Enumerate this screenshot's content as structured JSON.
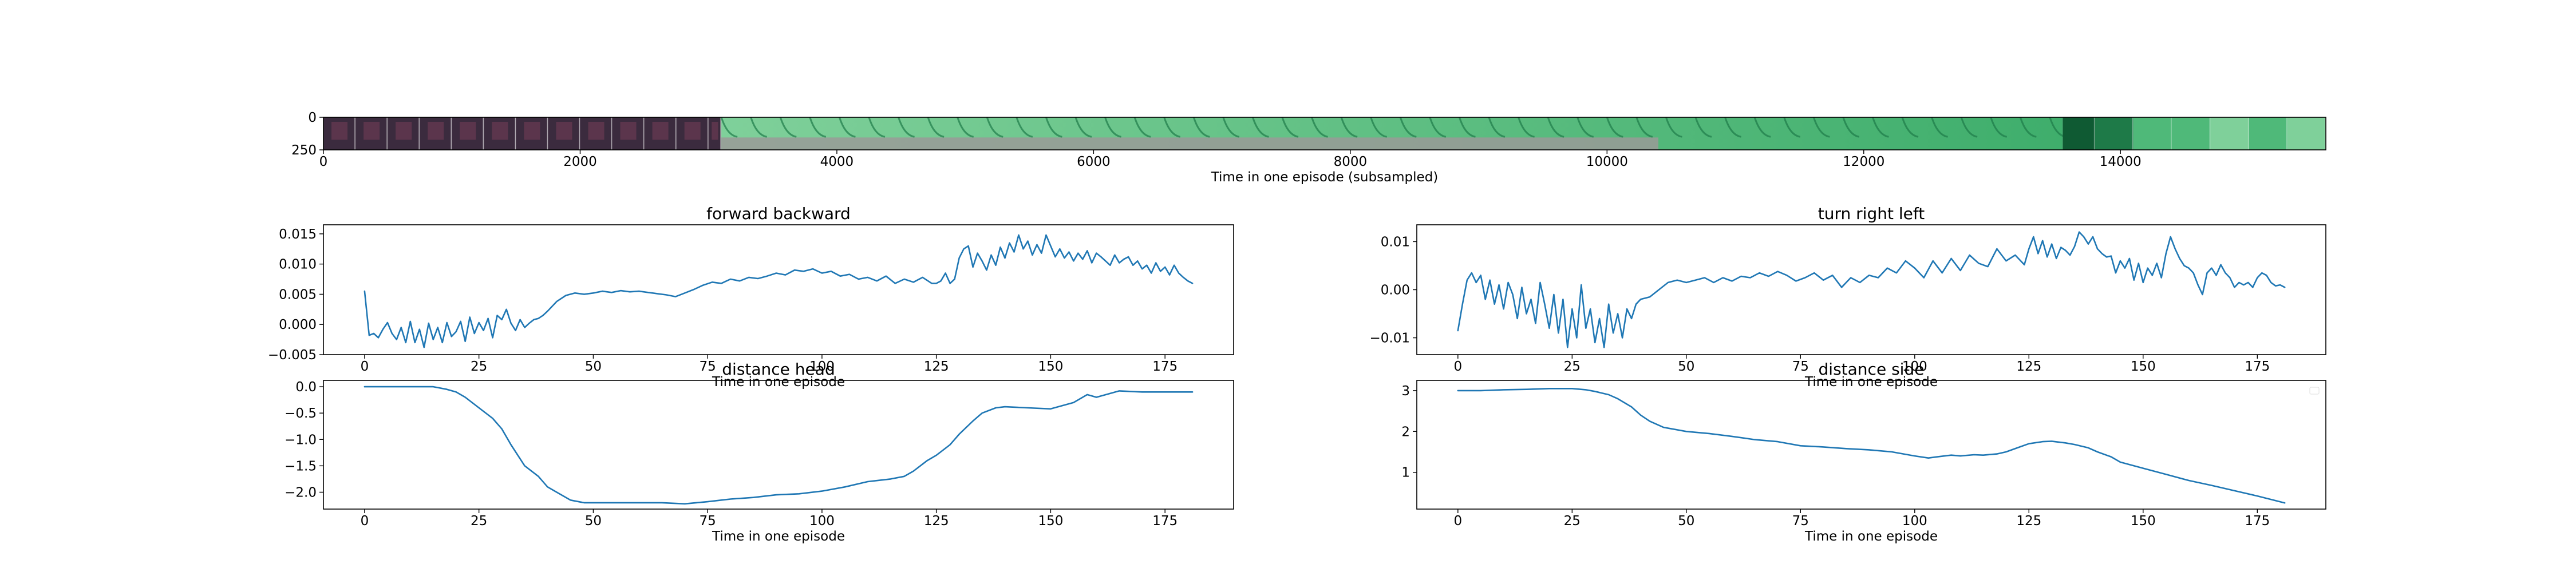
{
  "strip": {
    "xlabel": "Time in one episode (subsampled)",
    "xlim": [
      0,
      15600
    ],
    "xticks": [
      0,
      2000,
      4000,
      6000,
      8000,
      10000,
      12000,
      14000
    ],
    "ylim": [
      250,
      0
    ],
    "yticks": [
      0,
      250
    ],
    "colors": {
      "dark_frame": "#3b2b3e",
      "dark_frame_accent": "#6a3a52",
      "floor": "#9a9a98",
      "green_light": "#7fd09a",
      "green_mid": "#4fb979",
      "green_dark": "#1e7a48",
      "green_deep": "#0f5a33"
    }
  },
  "chart_data": [
    {
      "type": "line",
      "title": "forward backward",
      "xlabel": "Time in one episode",
      "ylabel": "",
      "xlim": [
        -9,
        190
      ],
      "ylim": [
        -0.005,
        0.0165
      ],
      "xticks": [
        0,
        25,
        50,
        75,
        100,
        125,
        150,
        175
      ],
      "yticks": [
        -0.005,
        0.0,
        0.005,
        0.01,
        0.015
      ],
      "ytick_labels": [
        "−0.005",
        "0.000",
        "0.005",
        "0.010",
        "0.015"
      ],
      "grid": false,
      "series": [
        {
          "color": "#1f77b4",
          "x": [
            0,
            1,
            2,
            3,
            4,
            5,
            6,
            7,
            8,
            9,
            10,
            11,
            12,
            13,
            14,
            15,
            16,
            17,
            18,
            19,
            20,
            21,
            22,
            23,
            24,
            25,
            26,
            27,
            28,
            29,
            30,
            31,
            32,
            33,
            34,
            35,
            36,
            37,
            38,
            39,
            40,
            42,
            44,
            46,
            48,
            50,
            52,
            54,
            56,
            58,
            60,
            62,
            64,
            66,
            68,
            70,
            72,
            74,
            76,
            78,
            80,
            82,
            84,
            86,
            88,
            90,
            92,
            94,
            96,
            98,
            100,
            102,
            104,
            106,
            108,
            110,
            112,
            114,
            116,
            118,
            120,
            122,
            124,
            125,
            126,
            127,
            128,
            129,
            130,
            131,
            132,
            133,
            134,
            135,
            136,
            137,
            138,
            139,
            140,
            141,
            142,
            143,
            144,
            145,
            146,
            147,
            148,
            149,
            150,
            151,
            152,
            153,
            154,
            155,
            156,
            157,
            158,
            159,
            160,
            161,
            162,
            163,
            164,
            165,
            166,
            167,
            168,
            169,
            170,
            171,
            172,
            173,
            174,
            175,
            176,
            177,
            178,
            179,
            180,
            181
          ],
          "y": [
            0.0055,
            -0.0018,
            -0.0015,
            -0.0022,
            -0.0008,
            0.0003,
            -0.0015,
            -0.0025,
            -0.0005,
            -0.003,
            0.0005,
            -0.003,
            -0.0008,
            -0.0038,
            0.0002,
            -0.0025,
            -0.0005,
            -0.003,
            0.0003,
            -0.002,
            -0.0012,
            0.0005,
            -0.0028,
            0.0012,
            -0.0015,
            0.0003,
            -0.001,
            0.001,
            -0.0022,
            0.0015,
            0.0008,
            0.0025,
            0.0002,
            -0.001,
            0.0008,
            -0.0005,
            0.0002,
            0.0008,
            0.001,
            0.0015,
            0.0022,
            0.0038,
            0.0048,
            0.0052,
            0.005,
            0.0052,
            0.0055,
            0.0053,
            0.0056,
            0.0054,
            0.0055,
            0.0053,
            0.0051,
            0.0049,
            0.0046,
            0.0052,
            0.0058,
            0.0065,
            0.007,
            0.0068,
            0.0075,
            0.0072,
            0.0078,
            0.0076,
            0.008,
            0.0085,
            0.0082,
            0.009,
            0.0088,
            0.0092,
            0.0085,
            0.0088,
            0.008,
            0.0083,
            0.0075,
            0.0078,
            0.0072,
            0.008,
            0.0068,
            0.0075,
            0.007,
            0.0078,
            0.0068,
            0.0068,
            0.0072,
            0.0085,
            0.0068,
            0.0075,
            0.011,
            0.0125,
            0.013,
            0.0095,
            0.0118,
            0.0105,
            0.009,
            0.0115,
            0.0098,
            0.0128,
            0.011,
            0.0135,
            0.012,
            0.0148,
            0.0125,
            0.0138,
            0.0115,
            0.0132,
            0.0118,
            0.0148,
            0.013,
            0.0112,
            0.0125,
            0.011,
            0.012,
            0.0105,
            0.0118,
            0.0108,
            0.0122,
            0.0102,
            0.0118,
            0.0112,
            0.0105,
            0.0098,
            0.0115,
            0.0102,
            0.0108,
            0.0112,
            0.0098,
            0.0105,
            0.0092,
            0.0098,
            0.0085,
            0.0102,
            0.0088,
            0.0095,
            0.0082,
            0.0098,
            0.0085,
            0.0078,
            0.0072,
            0.0068
          ]
        }
      ]
    },
    {
      "type": "line",
      "title": "turn right left",
      "xlabel": "Time in one episode",
      "ylabel": "",
      "xlim": [
        -9,
        190
      ],
      "ylim": [
        -0.0135,
        0.0135
      ],
      "xticks": [
        0,
        25,
        50,
        75,
        100,
        125,
        150,
        175
      ],
      "yticks": [
        -0.01,
        0.0,
        0.01
      ],
      "ytick_labels": [
        "−0.01",
        "0.00",
        "0.01"
      ],
      "grid": false,
      "series": [
        {
          "color": "#1f77b4",
          "x": [
            0,
            1,
            2,
            3,
            4,
            5,
            6,
            7,
            8,
            9,
            10,
            11,
            12,
            13,
            14,
            15,
            16,
            17,
            18,
            19,
            20,
            21,
            22,
            23,
            24,
            25,
            26,
            27,
            28,
            29,
            30,
            31,
            32,
            33,
            34,
            35,
            36,
            37,
            38,
            39,
            40,
            42,
            44,
            46,
            48,
            50,
            52,
            54,
            56,
            58,
            60,
            62,
            64,
            66,
            68,
            70,
            72,
            74,
            76,
            78,
            80,
            82,
            84,
            86,
            88,
            90,
            92,
            94,
            96,
            98,
            100,
            102,
            104,
            106,
            108,
            110,
            112,
            114,
            116,
            118,
            120,
            122,
            124,
            125,
            126,
            127,
            128,
            129,
            130,
            131,
            132,
            133,
            134,
            135,
            136,
            137,
            138,
            139,
            140,
            141,
            142,
            143,
            144,
            145,
            146,
            147,
            148,
            149,
            150,
            151,
            152,
            153,
            154,
            155,
            156,
            157,
            158,
            159,
            160,
            161,
            162,
            163,
            164,
            165,
            166,
            167,
            168,
            169,
            170,
            171,
            172,
            173,
            174,
            175,
            176,
            177,
            178,
            179,
            180,
            181
          ],
          "y": [
            -0.0085,
            -0.003,
            0.002,
            0.0035,
            0.0015,
            0.003,
            -0.002,
            0.002,
            -0.003,
            0.001,
            -0.004,
            0.0015,
            -0.001,
            -0.006,
            0.0005,
            -0.005,
            -0.002,
            -0.007,
            0.0015,
            -0.003,
            -0.008,
            -0.001,
            -0.009,
            -0.002,
            -0.012,
            -0.004,
            -0.01,
            0.001,
            -0.008,
            -0.004,
            -0.011,
            -0.006,
            -0.012,
            -0.003,
            -0.009,
            -0.005,
            -0.01,
            -0.004,
            -0.006,
            -0.003,
            -0.002,
            -0.0015,
            0.0,
            0.0015,
            0.002,
            0.0015,
            0.002,
            0.0025,
            0.0015,
            0.0025,
            0.0018,
            0.0028,
            0.0025,
            0.0035,
            0.0028,
            0.0038,
            0.003,
            0.0018,
            0.0025,
            0.0035,
            0.002,
            0.003,
            0.0005,
            0.0025,
            0.0015,
            0.003,
            0.0025,
            0.0045,
            0.0035,
            0.006,
            0.0045,
            0.0025,
            0.006,
            0.0035,
            0.0065,
            0.004,
            0.0072,
            0.0055,
            0.0048,
            0.0085,
            0.006,
            0.0072,
            0.0052,
            0.0085,
            0.011,
            0.0075,
            0.0102,
            0.0068,
            0.0095,
            0.0065,
            0.0088,
            0.0082,
            0.0072,
            0.009,
            0.012,
            0.011,
            0.0095,
            0.011,
            0.0085,
            0.0075,
            0.0068,
            0.007,
            0.0035,
            0.006,
            0.0045,
            0.0065,
            0.002,
            0.0055,
            0.0015,
            0.0045,
            0.003,
            0.0055,
            0.0025,
            0.0075,
            0.011,
            0.0085,
            0.0065,
            0.005,
            0.0045,
            0.0035,
            0.001,
            -0.001,
            0.0035,
            0.0045,
            0.003,
            0.0052,
            0.0035,
            0.0025,
            0.0005,
            0.0015,
            0.001,
            0.0015,
            0.0005,
            0.0025,
            0.0035,
            0.003,
            0.0015,
            0.0008,
            0.001,
            0.0005
          ]
        }
      ]
    },
    {
      "type": "line",
      "title": "distance head",
      "xlabel": "Time in one episode",
      "ylabel": "",
      "xlim": [
        -9,
        190
      ],
      "ylim": [
        -2.32,
        0.12
      ],
      "xticks": [
        0,
        25,
        50,
        75,
        100,
        125,
        150,
        175
      ],
      "yticks": [
        0.0,
        -0.5,
        -1.0,
        -1.5,
        -2.0
      ],
      "ytick_labels": [
        "0.0",
        "−0.5",
        "−1.0",
        "−1.5",
        "−2.0"
      ],
      "grid": false,
      "series": [
        {
          "color": "#1f77b4",
          "x": [
            0,
            5,
            10,
            15,
            18,
            20,
            22,
            25,
            28,
            30,
            32,
            35,
            38,
            40,
            42,
            45,
            48,
            50,
            55,
            60,
            65,
            70,
            75,
            80,
            85,
            90,
            95,
            100,
            105,
            110,
            115,
            118,
            120,
            123,
            125,
            128,
            130,
            133,
            135,
            138,
            140,
            145,
            150,
            155,
            158,
            160,
            165,
            170,
            175,
            181
          ],
          "y": [
            0.0,
            0.0,
            0.0,
            0.0,
            -0.05,
            -0.1,
            -0.2,
            -0.4,
            -0.6,
            -0.8,
            -1.1,
            -1.5,
            -1.7,
            -1.9,
            -2.0,
            -2.15,
            -2.2,
            -2.2,
            -2.2,
            -2.2,
            -2.2,
            -2.22,
            -2.18,
            -2.13,
            -2.1,
            -2.05,
            -2.03,
            -1.98,
            -1.9,
            -1.8,
            -1.75,
            -1.7,
            -1.6,
            -1.4,
            -1.3,
            -1.1,
            -0.9,
            -0.65,
            -0.5,
            -0.4,
            -0.38,
            -0.4,
            -0.42,
            -0.3,
            -0.15,
            -0.2,
            -0.08,
            -0.1,
            -0.1,
            -0.1
          ]
        }
      ]
    },
    {
      "type": "line",
      "title": "distance side",
      "xlabel": "Time in one episode",
      "ylabel": "",
      "xlim": [
        -9,
        190
      ],
      "ylim": [
        0.1,
        3.25
      ],
      "xticks": [
        0,
        25,
        50,
        75,
        100,
        125,
        150,
        175
      ],
      "yticks": [
        1,
        2,
        3
      ],
      "ytick_labels": [
        "1",
        "2",
        "3"
      ],
      "grid": false,
      "legend": "top-right",
      "series": [
        {
          "color": "#1f77b4",
          "x": [
            0,
            5,
            10,
            15,
            20,
            25,
            28,
            30,
            33,
            35,
            38,
            40,
            42,
            45,
            50,
            55,
            60,
            65,
            70,
            75,
            80,
            85,
            90,
            95,
            100,
            103,
            105,
            108,
            110,
            113,
            115,
            118,
            120,
            123,
            125,
            128,
            130,
            133,
            135,
            138,
            140,
            143,
            145,
            150,
            155,
            160,
            165,
            170,
            175,
            181
          ],
          "y": [
            3.0,
            3.0,
            3.02,
            3.03,
            3.05,
            3.05,
            3.02,
            2.98,
            2.9,
            2.8,
            2.6,
            2.4,
            2.25,
            2.1,
            2.0,
            1.95,
            1.88,
            1.8,
            1.75,
            1.65,
            1.62,
            1.58,
            1.55,
            1.5,
            1.4,
            1.35,
            1.38,
            1.42,
            1.4,
            1.43,
            1.42,
            1.45,
            1.5,
            1.62,
            1.7,
            1.75,
            1.76,
            1.72,
            1.68,
            1.6,
            1.5,
            1.38,
            1.25,
            1.1,
            0.95,
            0.8,
            0.68,
            0.55,
            0.42,
            0.25
          ]
        }
      ]
    }
  ]
}
